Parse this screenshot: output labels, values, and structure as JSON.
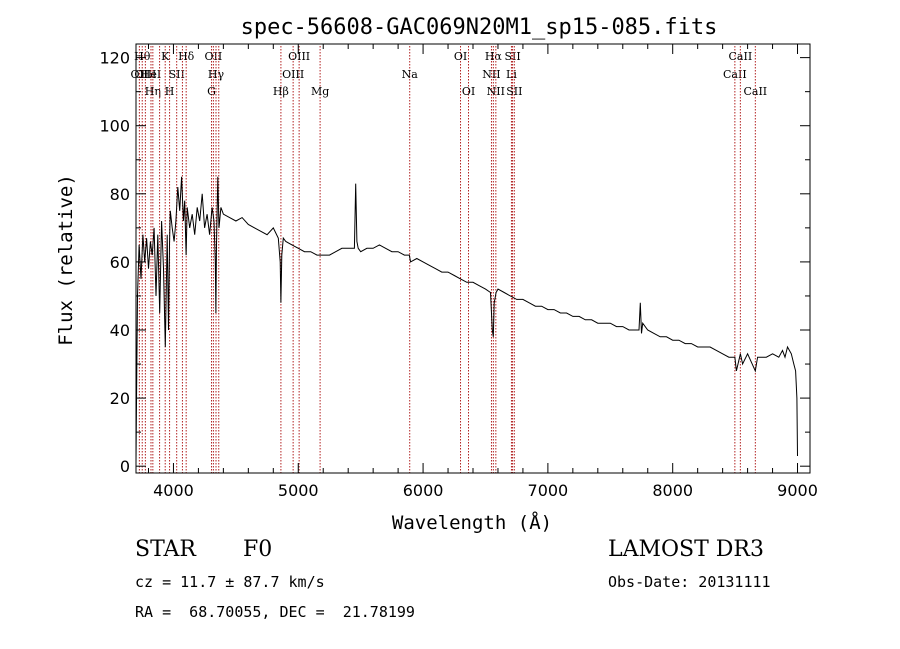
{
  "chart_data": {
    "type": "line",
    "title": "spec-56608-GAC069N20M1_sp15-085.fits",
    "xlabel": "Wavelength (Å)",
    "ylabel": "Flux (relative)",
    "xlim": [
      3700,
      9100
    ],
    "ylim": [
      -2,
      124
    ],
    "xticks": [
      4000,
      5000,
      6000,
      7000,
      8000,
      9000
    ],
    "yticks": [
      0,
      20,
      40,
      60,
      80,
      100,
      120
    ],
    "grid": false,
    "line_color": "#000000",
    "marker_color": "#b22222",
    "series": [
      {
        "x": [
          3700,
          3705,
          3712,
          3725,
          3740,
          3755,
          3770,
          3785,
          3800,
          3815,
          3830,
          3845,
          3860,
          3875,
          3890,
          3905,
          3920,
          3935,
          3950,
          3960,
          3968,
          3975,
          3990,
          4005,
          4020,
          4035,
          4050,
          4065,
          4080,
          4090,
          4101,
          4110,
          4130,
          4150,
          4170,
          4190,
          4210,
          4230,
          4250,
          4270,
          4290,
          4310,
          4325,
          4335,
          4340,
          4345,
          4355,
          4365,
          4380,
          4400,
          4450,
          4500,
          4550,
          4600,
          4650,
          4700,
          4750,
          4800,
          4840,
          4855,
          4861,
          4868,
          4880,
          4900,
          4950,
          5000,
          5050,
          5100,
          5150,
          5200,
          5250,
          5300,
          5350,
          5400,
          5450,
          5460,
          5470,
          5480,
          5500,
          5550,
          5600,
          5650,
          5700,
          5750,
          5800,
          5850,
          5890,
          5900,
          5950,
          6000,
          6050,
          6100,
          6150,
          6200,
          6250,
          6300,
          6350,
          6400,
          6450,
          6500,
          6540,
          6555,
          6563,
          6570,
          6585,
          6600,
          6650,
          6700,
          6750,
          6800,
          6850,
          6900,
          6950,
          7000,
          7050,
          7100,
          7150,
          7200,
          7250,
          7300,
          7350,
          7400,
          7450,
          7500,
          7550,
          7600,
          7650,
          7700,
          7730,
          7740,
          7750,
          7760,
          7800,
          7850,
          7900,
          7950,
          8000,
          8050,
          8100,
          8150,
          8200,
          8250,
          8300,
          8350,
          8400,
          8450,
          8498,
          8510,
          8542,
          8560,
          8600,
          8662,
          8680,
          8700,
          8750,
          8800,
          8850,
          8880,
          8900,
          8920,
          8950,
          8970,
          8985,
          8995,
          9000
        ],
        "y": [
          1,
          22,
          50,
          65,
          55,
          68,
          60,
          67,
          58,
          66,
          62,
          70,
          50,
          68,
          45,
          72,
          58,
          35,
          68,
          40,
          65,
          75,
          70,
          66,
          72,
          82,
          75,
          85,
          72,
          78,
          62,
          76,
          70,
          74,
          68,
          76,
          72,
          80,
          70,
          74,
          68,
          76,
          72,
          60,
          45,
          65,
          85,
          70,
          76,
          74,
          73,
          72,
          73,
          71,
          70,
          69,
          68,
          70,
          67,
          60,
          48,
          62,
          67,
          66,
          65,
          64,
          63,
          63,
          62,
          62,
          62,
          63,
          64,
          64,
          64,
          83,
          66,
          64,
          63,
          64,
          64,
          65,
          64,
          63,
          63,
          62,
          62,
          60,
          61,
          60,
          59,
          58,
          57,
          57,
          56,
          55,
          54,
          54,
          53,
          52,
          51,
          40,
          38,
          48,
          51,
          52,
          51,
          50,
          49,
          49,
          48,
          47,
          47,
          46,
          46,
          45,
          45,
          44,
          44,
          43,
          43,
          42,
          42,
          42,
          41,
          41,
          40,
          40,
          40,
          48,
          39,
          42,
          40,
          39,
          38,
          38,
          37,
          37,
          36,
          36,
          35,
          35,
          35,
          34,
          33,
          32,
          32,
          28,
          33,
          30,
          33,
          28,
          32,
          32,
          32,
          33,
          32,
          34,
          32,
          35,
          33,
          30,
          28,
          20,
          3
        ]
      }
    ],
    "line_markers": [
      {
        "x": 3727,
        "label": "OII",
        "row": 2
      },
      {
        "x": 3750,
        "label": "Hθ",
        "row": 1
      },
      {
        "x": 3775,
        "label": "OIII",
        "row": 2
      },
      {
        "x": 3820,
        "label": "HeI",
        "row": 2
      },
      {
        "x": 3835,
        "label": "Hη",
        "row": 3
      },
      {
        "x": 3889,
        "label": "",
        "row": 0
      },
      {
        "x": 3934,
        "label": "K",
        "row": 1
      },
      {
        "x": 3969,
        "label": "H",
        "row": 3
      },
      {
        "x": 4026,
        "label": "SII",
        "row": 2
      },
      {
        "x": 4072,
        "label": "",
        "row": 0
      },
      {
        "x": 4102,
        "label": "Hδ",
        "row": 1
      },
      {
        "x": 4305,
        "label": "G",
        "row": 3
      },
      {
        "x": 4320,
        "label": "OII",
        "row": 1
      },
      {
        "x": 4341,
        "label": "Hγ",
        "row": 2
      },
      {
        "x": 4363,
        "label": "",
        "row": 0
      },
      {
        "x": 4861,
        "label": "Hβ",
        "row": 3
      },
      {
        "x": 4959,
        "label": "OIII",
        "row": 2
      },
      {
        "x": 5007,
        "label": "OIII",
        "row": 1
      },
      {
        "x": 5175,
        "label": "Mg",
        "row": 3
      },
      {
        "x": 5893,
        "label": "Na",
        "row": 2
      },
      {
        "x": 6300,
        "label": "OI",
        "row": 1
      },
      {
        "x": 6364,
        "label": "OI",
        "row": 3
      },
      {
        "x": 6548,
        "label": "NII",
        "row": 2
      },
      {
        "x": 6563,
        "label": "Hα",
        "row": 1
      },
      {
        "x": 6583,
        "label": "NII",
        "row": 3
      },
      {
        "x": 6708,
        "label": "Li",
        "row": 2
      },
      {
        "x": 6717,
        "label": "SII",
        "row": 1
      },
      {
        "x": 6731,
        "label": "SII",
        "row": 3
      },
      {
        "x": 8498,
        "label": "CaII",
        "row": 2
      },
      {
        "x": 8542,
        "label": "CaII",
        "row": 1
      },
      {
        "x": 8662,
        "label": "CaII",
        "row": 3
      }
    ]
  },
  "info": {
    "class_label": "STAR",
    "subclass_label": "F0",
    "survey": "LAMOST DR3",
    "cz": "cz = 11.7 ± 87.7 km/s",
    "obs_date": "Obs-Date: 20131111",
    "radec": "RA =  68.70055, DEC =  21.78199"
  }
}
